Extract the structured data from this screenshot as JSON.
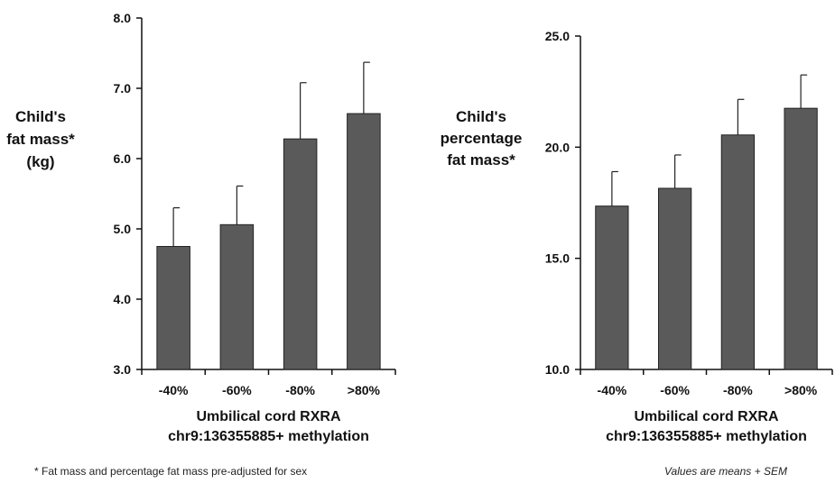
{
  "chart_data": [
    {
      "type": "bar",
      "ylabel_lines": [
        "Child's",
        "fat mass*",
        "(kg)"
      ],
      "xlabel_lines": [
        "Umbilical cord RXRA",
        "chr9:136355885+ methylation"
      ],
      "categories": [
        "-40%",
        "-60%",
        "-80%",
        ">80%"
      ],
      "values": [
        4.75,
        5.06,
        6.28,
        6.64
      ],
      "errors": [
        0.55,
        0.55,
        0.8,
        0.73
      ],
      "ylim": [
        3.0,
        8.0
      ],
      "yticks": [
        "3.0",
        "4.0",
        "5.0",
        "6.0",
        "7.0",
        "8.0"
      ],
      "bar_color": "#5a5a5a",
      "grid": false
    },
    {
      "type": "bar",
      "ylabel_lines": [
        "Child's",
        "percentage",
        "fat mass*"
      ],
      "xlabel_lines": [
        "Umbilical cord RXRA",
        "chr9:136355885+ methylation"
      ],
      "categories": [
        "-40%",
        "-60%",
        "-80%",
        ">80%"
      ],
      "values": [
        17.35,
        18.15,
        20.55,
        21.75
      ],
      "errors": [
        1.55,
        1.5,
        1.6,
        1.5
      ],
      "ylim": [
        10.0,
        25.0
      ],
      "yticks": [
        "10.0",
        "15.0",
        "20.0",
        "25.0"
      ],
      "bar_color": "#5a5a5a",
      "grid": false
    }
  ],
  "footnotes": {
    "left": "* Fat mass and percentage fat mass pre-adjusted for sex",
    "right": "Values are means + SEM"
  }
}
